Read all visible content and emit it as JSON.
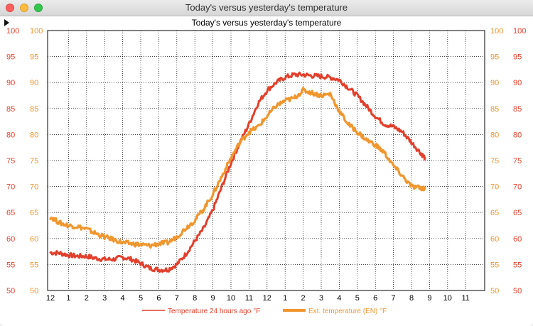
{
  "window": {
    "title": "Today's versus yesterday's temperature"
  },
  "chart_data": {
    "type": "line",
    "title": "Today's versus yesterday's temperature",
    "ylim": [
      50,
      100
    ],
    "yticks": [
      "50",
      "55",
      "60",
      "65",
      "70",
      "75",
      "80",
      "85",
      "90",
      "95",
      "100"
    ],
    "xticks": [
      "12",
      "1",
      "2",
      "3",
      "4",
      "5",
      "6",
      "7",
      "8",
      "9",
      "10",
      "11",
      "12",
      "1",
      "2",
      "3",
      "4",
      "5",
      "6",
      "7",
      "8",
      "9",
      "10",
      "11"
    ],
    "grid": true,
    "legend_position": "bottom-center",
    "series": [
      {
        "name": "Temperature 24 hours ago °F",
        "color": "#e2402c",
        "x": [
          0,
          0.5,
          1,
          1.5,
          2,
          2.5,
          3,
          3.5,
          4,
          4.5,
          5,
          5.5,
          6,
          6.5,
          7,
          7.5,
          8,
          8.5,
          9,
          9.5,
          10,
          10.5,
          11,
          11.5,
          12,
          12.5,
          13,
          13.5,
          14,
          14.5,
          15,
          15.5,
          16,
          16.5,
          17,
          17.5,
          18,
          18.5,
          19,
          19.5,
          20,
          20.5,
          20.75
        ],
        "y": [
          57.3,
          57.2,
          56.8,
          56.6,
          56.6,
          56.2,
          56.0,
          56.0,
          56.4,
          56.0,
          55.2,
          54.3,
          54.0,
          54.0,
          55.0,
          57.0,
          59.5,
          62.0,
          65.5,
          70.0,
          74.5,
          78.5,
          82.0,
          86.0,
          88.5,
          90.0,
          91.0,
          91.5,
          91.5,
          91.3,
          91.2,
          91.0,
          90.5,
          89.0,
          87.5,
          85.5,
          83.5,
          82.0,
          81.5,
          80.5,
          78.5,
          76.5,
          75.5
        ]
      },
      {
        "name": "Ext. temperature (EN) °F",
        "color": "#f0962e",
        "x": [
          0,
          0.5,
          1,
          1.5,
          2,
          2.5,
          3,
          3.5,
          4,
          4.5,
          5,
          5.5,
          6,
          6.5,
          7,
          7.5,
          8,
          8.5,
          9,
          9.5,
          10,
          10.5,
          11,
          11.5,
          12,
          12.5,
          13,
          13.5,
          14,
          14.5,
          15,
          15.5,
          16,
          16.5,
          17,
          17.5,
          18,
          18.5,
          19,
          19.5,
          20,
          20.5,
          20.75
        ],
        "y": [
          64.2,
          63.0,
          62.5,
          62.3,
          61.8,
          61.0,
          60.3,
          59.8,
          59.2,
          59.0,
          58.8,
          58.6,
          59.0,
          59.2,
          60.3,
          62.0,
          63.5,
          65.8,
          68.5,
          72.0,
          75.5,
          78.5,
          80.5,
          81.5,
          83.5,
          85.5,
          86.5,
          87.0,
          88.5,
          88.0,
          87.5,
          87.8,
          84.5,
          82.0,
          80.5,
          79.0,
          78.0,
          76.5,
          74.0,
          72.0,
          70.0,
          69.7,
          69.7
        ]
      }
    ]
  }
}
